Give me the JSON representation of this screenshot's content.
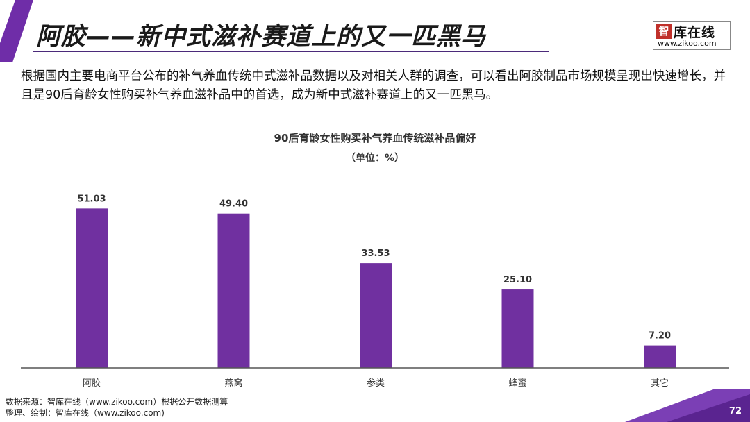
{
  "slide": {
    "title": "阿胶——新中式滋补赛道上的又一匹黑马",
    "intro": "根据国内主要电商平台公布的补气养血传统中式滋补品数据以及对相关人群的调查，可以看出阿胶制品市场规模呈现出快速增长，并且是90后育龄女性购买补气养血滋补品中的首选，成为新中式滋补赛道上的又一匹黑马。",
    "page_number": "72",
    "accent_color": "#6f2da8"
  },
  "logo": {
    "mark": "智",
    "name": "库在线",
    "url": "www.zikoo.com"
  },
  "footer": {
    "source": "数据来源：智库在线（www.zikoo.com）根据公开数据测算",
    "compiled": "整理、绘制：智库在线（www.zikoo.com)"
  },
  "chart_data": {
    "type": "bar",
    "title": "90后育龄女性购买补气养血传统滋补品偏好",
    "subtitle": "（单位：%）",
    "categories": [
      "阿胶",
      "燕窝",
      "参类",
      "蜂蜜",
      "其它"
    ],
    "values": [
      51.03,
      49.4,
      33.53,
      25.1,
      7.2
    ],
    "value_labels": [
      "51.03",
      "49.40",
      "33.53",
      "25.10",
      "7.20"
    ],
    "ylim": [
      0,
      60
    ],
    "grid": false,
    "bar_color": "#7030a0"
  }
}
